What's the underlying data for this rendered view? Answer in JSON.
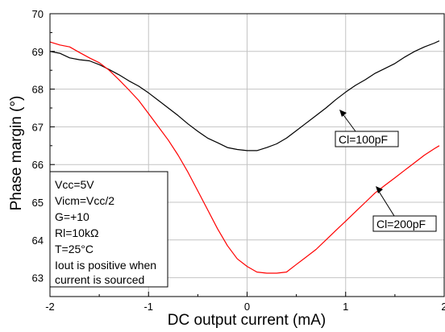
{
  "chart_data": {
    "type": "line",
    "title": "",
    "xlabel": "DC output current (mA)",
    "ylabel": "Phase margin (°)",
    "xlim": [
      -2,
      2
    ],
    "ylim": [
      62.5,
      70
    ],
    "x_ticks": [
      "-2",
      "-1",
      "0",
      "1",
      "2"
    ],
    "y_ticks": [
      "63",
      "64",
      "65",
      "66",
      "67",
      "68",
      "69",
      "70"
    ],
    "grid": true,
    "series": [
      {
        "name": "Cl=100pF",
        "color": "#000000",
        "x": [
          -2.0,
          -1.9,
          -1.8,
          -1.7,
          -1.6,
          -1.5,
          -1.4,
          -1.3,
          -1.2,
          -1.1,
          -1.0,
          -0.9,
          -0.8,
          -0.7,
          -0.6,
          -0.5,
          -0.4,
          -0.3,
          -0.2,
          -0.1,
          0.0,
          0.1,
          0.2,
          0.3,
          0.4,
          0.5,
          0.6,
          0.7,
          0.8,
          0.9,
          1.0,
          1.1,
          1.2,
          1.3,
          1.4,
          1.5,
          1.6,
          1.7,
          1.8,
          1.9,
          1.95
        ],
        "y": [
          69.0,
          68.95,
          68.83,
          68.78,
          68.75,
          68.65,
          68.52,
          68.38,
          68.22,
          68.08,
          67.9,
          67.7,
          67.5,
          67.3,
          67.08,
          66.88,
          66.7,
          66.58,
          66.45,
          66.4,
          66.37,
          66.37,
          66.45,
          66.55,
          66.7,
          66.9,
          67.1,
          67.3,
          67.5,
          67.72,
          67.92,
          68.1,
          68.25,
          68.42,
          68.55,
          68.68,
          68.85,
          69.0,
          69.12,
          69.22,
          69.28
        ]
      },
      {
        "name": "Cl=200pF",
        "color": "#ff0000",
        "x": [
          -2.0,
          -1.9,
          -1.8,
          -1.7,
          -1.6,
          -1.5,
          -1.4,
          -1.3,
          -1.2,
          -1.1,
          -1.0,
          -0.9,
          -0.8,
          -0.7,
          -0.6,
          -0.5,
          -0.4,
          -0.3,
          -0.2,
          -0.1,
          0.0,
          0.1,
          0.2,
          0.3,
          0.4,
          0.5,
          0.6,
          0.7,
          0.8,
          0.9,
          1.0,
          1.1,
          1.2,
          1.3,
          1.4,
          1.5,
          1.6,
          1.7,
          1.8,
          1.9,
          1.95
        ],
        "y": [
          69.25,
          69.17,
          69.12,
          68.97,
          68.83,
          68.7,
          68.5,
          68.25,
          67.98,
          67.7,
          67.35,
          67.0,
          66.65,
          66.25,
          65.8,
          65.3,
          64.8,
          64.3,
          63.85,
          63.5,
          63.3,
          63.15,
          63.12,
          63.12,
          63.15,
          63.35,
          63.55,
          63.75,
          64.0,
          64.25,
          64.5,
          64.75,
          65.0,
          65.25,
          65.45,
          65.65,
          65.85,
          66.05,
          66.25,
          66.42,
          66.5
        ]
      }
    ],
    "annotations": [
      {
        "text": "Cl=100pF",
        "series": "Cl=100pF"
      },
      {
        "text": "Cl=200pF",
        "series": "Cl=200pF"
      }
    ],
    "conditions": [
      "Vcc=5V",
      "Vicm=Vcc/2",
      "G=+10",
      "Rl=10kΩ",
      "T=25°C",
      "Iout is positive when",
      "current is sourced"
    ]
  }
}
